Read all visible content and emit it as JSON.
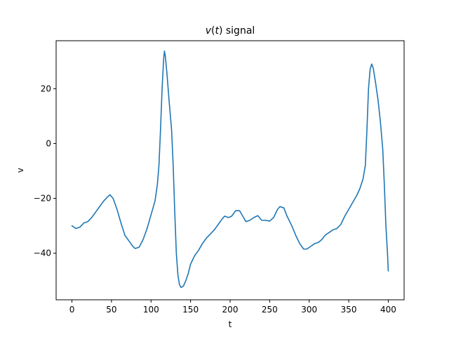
{
  "chart_data": {
    "type": "line",
    "title_var": "v",
    "title_arg": "t",
    "title_rest": " signal",
    "xlabel": "t",
    "ylabel": "v",
    "xlim": [
      -20,
      420
    ],
    "ylim": [
      -57,
      37.5
    ],
    "xticks": [
      0,
      50,
      100,
      150,
      200,
      250,
      300,
      350,
      400
    ],
    "yticks": [
      -40,
      -20,
      0,
      20
    ],
    "grid": false,
    "legend": "none",
    "series": [
      {
        "color": "#1f77b4",
        "points": [
          [
            0,
            -30
          ],
          [
            5,
            -31
          ],
          [
            10,
            -30.5
          ],
          [
            15,
            -29
          ],
          [
            20,
            -28.5
          ],
          [
            25,
            -27
          ],
          [
            30,
            -25
          ],
          [
            35,
            -23
          ],
          [
            40,
            -21
          ],
          [
            45,
            -19.5
          ],
          [
            48,
            -18.7
          ],
          [
            52,
            -20
          ],
          [
            57,
            -24
          ],
          [
            62,
            -29
          ],
          [
            67,
            -33.5
          ],
          [
            72,
            -35.5
          ],
          [
            77,
            -37.5
          ],
          [
            80,
            -38.3
          ],
          [
            85,
            -37.8
          ],
          [
            90,
            -35
          ],
          [
            95,
            -31
          ],
          [
            100,
            -26
          ],
          [
            105,
            -21
          ],
          [
            108,
            -15
          ],
          [
            110,
            -8
          ],
          [
            112,
            5
          ],
          [
            114,
            20
          ],
          [
            116,
            31
          ],
          [
            117,
            33.7
          ],
          [
            118,
            32
          ],
          [
            120,
            26
          ],
          [
            123,
            15
          ],
          [
            126,
            5
          ],
          [
            128,
            -8
          ],
          [
            130,
            -25
          ],
          [
            132,
            -40
          ],
          [
            134,
            -48
          ],
          [
            136,
            -51.5
          ],
          [
            138,
            -52.5
          ],
          [
            141,
            -52
          ],
          [
            144,
            -50
          ],
          [
            147,
            -47.5
          ],
          [
            150,
            -44
          ],
          [
            155,
            -41
          ],
          [
            160,
            -39
          ],
          [
            165,
            -36.5
          ],
          [
            170,
            -34.5
          ],
          [
            175,
            -33
          ],
          [
            180,
            -31.5
          ],
          [
            185,
            -29.5
          ],
          [
            190,
            -27.5
          ],
          [
            193,
            -26.5
          ],
          [
            198,
            -27
          ],
          [
            202,
            -26.5
          ],
          [
            207,
            -24.5
          ],
          [
            212,
            -24.5
          ],
          [
            216,
            -26.5
          ],
          [
            220,
            -28.5
          ],
          [
            225,
            -28
          ],
          [
            230,
            -27
          ],
          [
            235,
            -26.3
          ],
          [
            240,
            -28
          ],
          [
            245,
            -28
          ],
          [
            250,
            -28.3
          ],
          [
            255,
            -27
          ],
          [
            260,
            -24
          ],
          [
            263,
            -23
          ],
          [
            268,
            -23.5
          ],
          [
            272,
            -26.5
          ],
          [
            278,
            -30
          ],
          [
            283,
            -33.5
          ],
          [
            288,
            -36.5
          ],
          [
            293,
            -38.5
          ],
          [
            297,
            -38.5
          ],
          [
            302,
            -37.5
          ],
          [
            307,
            -36.5
          ],
          [
            312,
            -36
          ],
          [
            316,
            -35
          ],
          [
            320,
            -33.5
          ],
          [
            325,
            -32.5
          ],
          [
            330,
            -31.5
          ],
          [
            335,
            -31
          ],
          [
            340,
            -29.5
          ],
          [
            345,
            -26.5
          ],
          [
            350,
            -24
          ],
          [
            355,
            -21.5
          ],
          [
            360,
            -19
          ],
          [
            364,
            -16.5
          ],
          [
            368,
            -13
          ],
          [
            371,
            -8
          ],
          [
            373,
            5
          ],
          [
            375,
            20
          ],
          [
            377,
            27
          ],
          [
            379,
            29
          ],
          [
            381,
            27.5
          ],
          [
            384,
            22
          ],
          [
            387,
            16
          ],
          [
            390,
            8
          ],
          [
            393,
            -2
          ],
          [
            395,
            -15
          ],
          [
            397,
            -30
          ],
          [
            399,
            -40
          ],
          [
            400,
            -46.5
          ]
        ]
      }
    ]
  }
}
